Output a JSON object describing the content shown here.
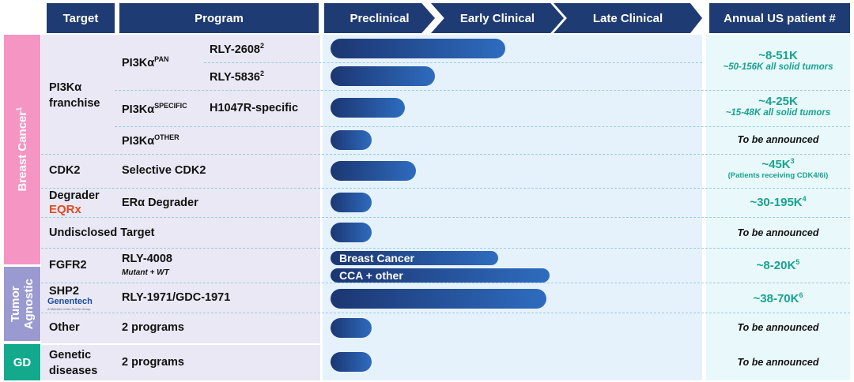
{
  "headers": {
    "target": "Target",
    "program": "Program",
    "phases": [
      "Preclinical",
      "Early Clinical",
      "Late Clinical"
    ],
    "annual": "Annual US patient #"
  },
  "categories": [
    {
      "label": "Breast Cancer",
      "sup": "1",
      "color": "#f595c4"
    },
    {
      "label": "Tumor Agnostic",
      "color": "#9a9ad1"
    },
    {
      "label": "GD",
      "color": "#13a98c"
    }
  ],
  "targets": {
    "pi3k": "PI3Kα franchise",
    "cdk2": "CDK2",
    "degrader": "Degrader",
    "eqrx_logo": "EQRx",
    "undisclosed": "Undisclosed Target",
    "fgfr2": "FGFR2",
    "shp2": "SHP2",
    "genentech_logo": "Genentech",
    "genentech_tag": "A Member of the Roche Group",
    "other": "Other",
    "genetic": "Genetic diseases"
  },
  "programs": {
    "pan": "PI3Kα",
    "pan_sup": "PAN",
    "specific": "PI3Kα",
    "specific_sup": "SPECIFIC",
    "other": "PI3Kα",
    "other_sup": "OTHER",
    "rly2608": "RLY-2608",
    "rly2608_sup": "2",
    "rly5836": "RLY-5836",
    "rly5836_sup": "2",
    "h1047r": "H1047R-specific",
    "cdk2": "Selective CDK2",
    "era": "ERα Degrader",
    "rly4008": "RLY-4008",
    "rly4008_sub": "Mutant + WT",
    "rly1971": "RLY-1971/GDC-1971",
    "other2": "2 programs",
    "gd2": "2 programs"
  },
  "bars": [
    {
      "id": "rly-2608",
      "progress": 0.47
    },
    {
      "id": "rly-5836",
      "progress": 0.28
    },
    {
      "id": "h1047r",
      "progress": 0.2
    },
    {
      "id": "pi3k-other",
      "progress": 0.11
    },
    {
      "id": "cdk2",
      "progress": 0.23
    },
    {
      "id": "era-degrader",
      "progress": 0.11
    },
    {
      "id": "undisclosed",
      "progress": 0.11
    },
    {
      "id": "fgfr2-breast",
      "progress": 0.45,
      "label": "Breast Cancer"
    },
    {
      "id": "fgfr2-cca",
      "progress": 0.59,
      "label": "CCA + other"
    },
    {
      "id": "rly-1971",
      "progress": 0.58
    },
    {
      "id": "other",
      "progress": 0.11
    },
    {
      "id": "gd",
      "progress": 0.11
    }
  ],
  "annual": {
    "pan": "~8-51K",
    "pan_sub": "~50-156K all solid tumors",
    "spec": "~4-25K",
    "spec_sub": "~15-48K all solid tumors",
    "other": "To be announced",
    "cdk2": "~45K",
    "cdk2_sup": "3",
    "cdk2_sub": "(Patients receiving CDK4/6i)",
    "degrader": "~30-195K",
    "degrader_sup": "4",
    "undisclosed": "To be announced",
    "fgfr2": "~8-20K",
    "fgfr2_sup": "5",
    "shp2": "~38-70K",
    "shp2_sup": "6",
    "other2": "To be announced",
    "gd": "To be announced"
  },
  "colors": {
    "header": "#1f3b73",
    "accent": "#17a38f",
    "bar_start": "#1c3672",
    "bar_end": "#2e6cbf",
    "eqrx": "#e04a1f",
    "genentech": "#1b4a9c"
  }
}
